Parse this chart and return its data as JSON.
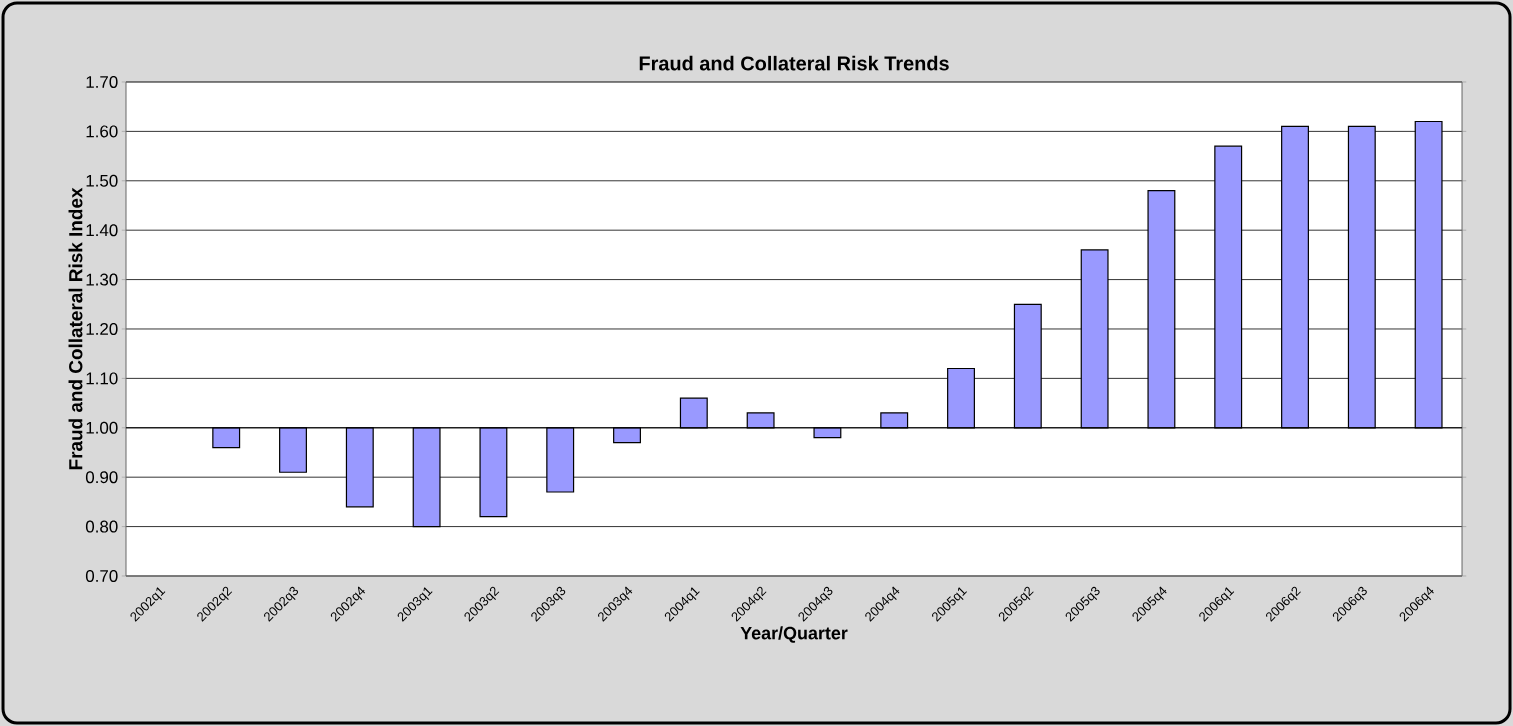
{
  "chart_data": {
    "type": "bar",
    "title": "Fraud and Collateral Risk Trends",
    "xlabel": "Year/Quarter",
    "ylabel": "Fraud and Collateral Risk Index",
    "categories": [
      "2002q1",
      "2002q2",
      "2002q3",
      "2002q4",
      "2003q1",
      "2003q2",
      "2003q3",
      "2003q4",
      "2004q1",
      "2004q2",
      "2004q3",
      "2004q4",
      "2005q1",
      "2005q2",
      "2005q3",
      "2005q4",
      "2006q1",
      "2006q2",
      "2006q3",
      "2006q4"
    ],
    "base": [
      null,
      1.0,
      1.0,
      1.0,
      1.0,
      1.0,
      1.0,
      1.0,
      1.0,
      1.0,
      1.0,
      1.0,
      1.0,
      1.0,
      1.0,
      1.0,
      1.0,
      1.0,
      1.0,
      1.0
    ],
    "values": [
      null,
      -0.04,
      -0.09,
      -0.16,
      -0.2,
      -0.18,
      -0.13,
      -0.03,
      0.06,
      0.03,
      -0.02,
      0.03,
      0.12,
      0.25,
      0.36,
      0.48,
      0.57,
      0.61,
      0.61,
      0.62
    ],
    "color": "#9999ff",
    "ylim": [
      0.7,
      1.7
    ],
    "yticks": [
      {
        "value": 0.7,
        "label": "0.70"
      },
      {
        "value": 0.8,
        "label": "0.80"
      },
      {
        "value": 0.9,
        "label": "0.90"
      },
      {
        "value": 1.0,
        "label": "1.00"
      },
      {
        "value": 1.1,
        "label": "1.10"
      },
      {
        "value": 1.2,
        "label": "1.20"
      },
      {
        "value": 1.3,
        "label": "1.30"
      },
      {
        "value": 1.4,
        "label": "1.40"
      },
      {
        "value": 1.5,
        "label": "1.50"
      },
      {
        "value": 1.6,
        "label": "1.60"
      },
      {
        "value": 1.7,
        "label": "1.70"
      }
    ],
    "grid": "y"
  }
}
